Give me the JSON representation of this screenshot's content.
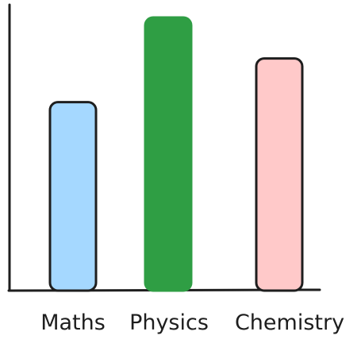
{
  "chart_data": {
    "type": "bar",
    "categories": [
      "Maths",
      "Physics",
      "Chemistry"
    ],
    "values": [
      69,
      100,
      85
    ],
    "ylim": [
      0,
      100
    ],
    "grid": false,
    "colors": {
      "Maths": "#a5d8ff",
      "Physics": "#2f9e44",
      "Chemistry": "#ffc9c9"
    },
    "strokes": {
      "Maths": "#1e1e1e",
      "Physics": "#2f9e44",
      "Chemistry": "#1e1e1e"
    },
    "axis_color": "#1e1e1e"
  }
}
